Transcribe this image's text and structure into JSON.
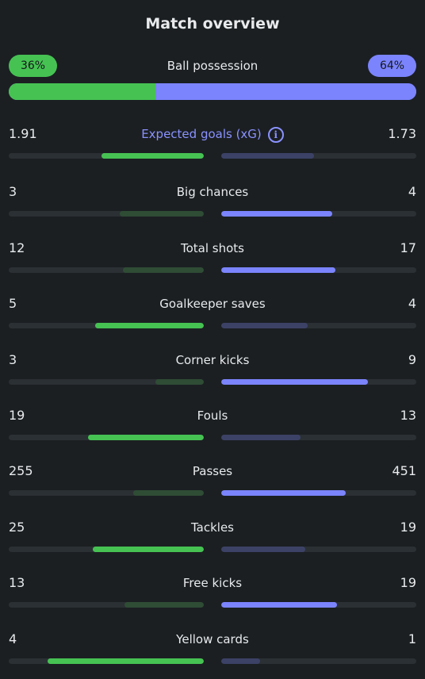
{
  "title": "Match overview",
  "possession": {
    "label": "Ball possession",
    "home_label": "36%",
    "away_label": "64%",
    "home": 36,
    "away": 64
  },
  "colors": {
    "home": "#46c253",
    "away": "#7b84fd",
    "home_weak": "#2f4c35",
    "away_weak": "#3c4266"
  },
  "stats": [
    {
      "label": "Expected goals (xG)",
      "home": "1.91",
      "away": "1.73",
      "home_fill": 0.525,
      "away_fill": 0.475,
      "info_icon": "info-icon",
      "accent": true
    },
    {
      "label": "Big chances",
      "home": "3",
      "away": "4",
      "home_fill": 0.429,
      "away_fill": 0.571
    },
    {
      "label": "Total shots",
      "home": "12",
      "away": "17",
      "home_fill": 0.414,
      "away_fill": 0.586
    },
    {
      "label": "Goalkeeper saves",
      "home": "5",
      "away": "4",
      "home_fill": 0.556,
      "away_fill": 0.444
    },
    {
      "label": "Corner kicks",
      "home": "3",
      "away": "9",
      "home_fill": 0.25,
      "away_fill": 0.75
    },
    {
      "label": "Fouls",
      "home": "19",
      "away": "13",
      "home_fill": 0.594,
      "away_fill": 0.406
    },
    {
      "label": "Passes",
      "home": "255",
      "away": "451",
      "home_fill": 0.361,
      "away_fill": 0.639
    },
    {
      "label": "Tackles",
      "home": "25",
      "away": "19",
      "home_fill": 0.568,
      "away_fill": 0.432
    },
    {
      "label": "Free kicks",
      "home": "13",
      "away": "19",
      "home_fill": 0.406,
      "away_fill": 0.594
    },
    {
      "label": "Yellow cards",
      "home": "4",
      "away": "1",
      "home_fill": 0.8,
      "away_fill": 0.2
    }
  ]
}
